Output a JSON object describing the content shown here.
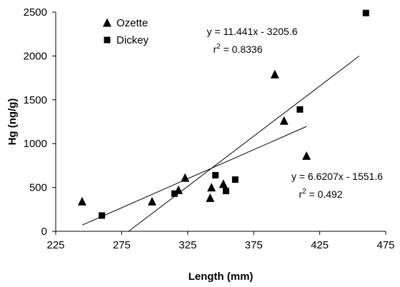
{
  "chart_data": {
    "type": "scatter",
    "xlabel": "Length (mm)",
    "ylabel": "Hg (ng/g)",
    "xlim": [
      225,
      475
    ],
    "ylim": [
      0,
      2500
    ],
    "xticks": [
      225,
      275,
      325,
      375,
      425,
      475
    ],
    "yticks": [
      0,
      500,
      1000,
      1500,
      2000,
      2500
    ],
    "xtick_labels": [
      "225",
      "275",
      "325",
      "375",
      "425",
      "475"
    ],
    "ytick_labels": [
      "0",
      "500",
      "1000",
      "1500",
      "2000",
      "2500"
    ],
    "grid": false,
    "legend_position": "top-left",
    "series": [
      {
        "name": "Ozette",
        "marker": "triangle",
        "color": "#000000",
        "x": [
          245,
          298,
          318,
          323,
          342,
          343,
          352,
          391,
          398,
          415
        ],
        "y": [
          340,
          340,
          470,
          610,
          380,
          500,
          540,
          1790,
          1260,
          860
        ],
        "trendline": {
          "equation": "y = 6.6207x - 1551.6",
          "r2_prefix": "r",
          "r2_sup": "2",
          "r2_value": " = 0.492",
          "slope": 6.6207,
          "intercept": -1551.6,
          "x_range": [
            245,
            415
          ]
        }
      },
      {
        "name": "Dickey",
        "marker": "square",
        "color": "#000000",
        "x": [
          260,
          315,
          346,
          354,
          361,
          410,
          460
        ],
        "y": [
          180,
          430,
          640,
          460,
          590,
          1390,
          2490
        ],
        "trendline": {
          "equation": "y = 11.441x - 3205.6",
          "r2_prefix": "r",
          "r2_sup": "2",
          "r2_value": " = 0.8336",
          "slope": 11.441,
          "intercept": -3205.6,
          "x_range": [
            280.2,
            455
          ]
        }
      }
    ]
  }
}
